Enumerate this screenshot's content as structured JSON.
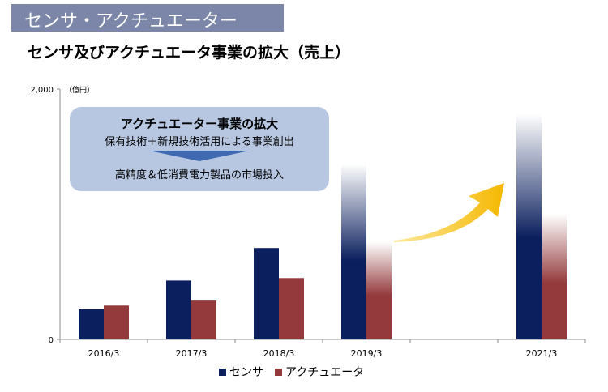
{
  "header": {
    "banner": "センサ・アクチュエーター"
  },
  "subtitle": "センサ及びアクチュエータ事業の拡大（売上）",
  "callout": {
    "title": "アクチュエーター事業の拡大",
    "line1": "保有技術＋新規技術活用による事業創出",
    "line2": "高精度＆低消費電力製品の市場投入"
  },
  "colors": {
    "sensor": "#0b1f5e",
    "actuator": "#943a3c",
    "arrow": "#f5b800"
  },
  "chart_data": {
    "type": "bar",
    "unit_label": "（億円）",
    "ylim": [
      0,
      2000
    ],
    "yticks": [
      "0",
      "2,000"
    ],
    "categories": [
      "2016/3",
      "2017/3",
      "2018/3",
      "2019/3",
      "",
      "2021/3"
    ],
    "series": [
      {
        "name": "センサ",
        "values": [
          240,
          470,
          730,
          1400,
          null,
          1800
        ]
      },
      {
        "name": "アクチュエータ",
        "values": [
          270,
          310,
          490,
          780,
          null,
          1000
        ]
      }
    ],
    "fade_to_top": [
      false,
      false,
      false,
      true,
      false,
      true
    ],
    "legend_position": "bottom"
  }
}
